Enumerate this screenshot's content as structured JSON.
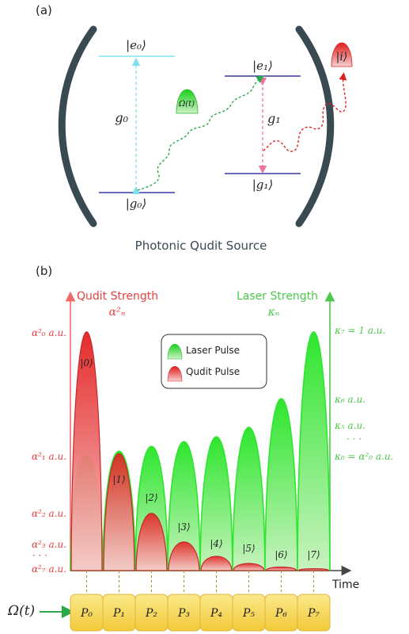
{
  "panel_a": {
    "label": "(a)",
    "caption": "Photonic Qudit Source",
    "levels": {
      "e0": "|e₀⟩",
      "g0": "|g₀⟩",
      "e1": "|e₁⟩",
      "g1": "|g₁⟩"
    },
    "couplings": {
      "g0": "g₀",
      "g1": "g₁"
    },
    "laser_label": "Ω(t)",
    "output_label": "|i⟩"
  },
  "panel_b": {
    "label": "(b)",
    "left_axis_title": "Qudit Strength",
    "left_axis_symbol": "α²ₙ",
    "right_axis_title": "Laser Strength",
    "right_axis_symbol": "κₙ",
    "time_label": "Time",
    "drive_label": "Ω(t)",
    "legend": {
      "laser": "Laser Pulse",
      "qudit": "Qudit Pulse"
    },
    "left_ticks": [
      "α²₀ a.u.",
      "α²₁ a.u.",
      "α²₂ a.u.",
      "α²₃ a.u.",
      "· · ·",
      "α²₇ a.u."
    ],
    "right_ticks": [
      "κ₇ = 1 a.u.",
      "κ₆ a.u.",
      "κ₅ a.u.",
      "· · ·",
      "κ₀ = α²₀ a.u."
    ],
    "pulse_labels": [
      "P₀",
      "P₁",
      "P₂",
      "P₃",
      "P₄",
      "P₅",
      "P₆",
      "P₇"
    ],
    "state_labels": [
      "|0⟩",
      "|1⟩",
      "|2⟩",
      "|3⟩",
      "|4⟩",
      "|5⟩",
      "|6⟩",
      "|7⟩"
    ],
    "laser_levels": [
      0.48,
      0.5,
      0.52,
      0.54,
      0.56,
      0.6,
      0.72,
      1.0
    ],
    "qudit_levels": [
      1.0,
      0.49,
      0.24,
      0.12,
      0.06,
      0.03,
      0.015,
      0.008
    ],
    "colors": {
      "laser": "#33d633",
      "qudit": "#e63030",
      "cavity": "#3a4a52",
      "level": "#3a3aa8",
      "top_level": "#7fdfef",
      "pulse_box": "#f7d85a"
    }
  }
}
